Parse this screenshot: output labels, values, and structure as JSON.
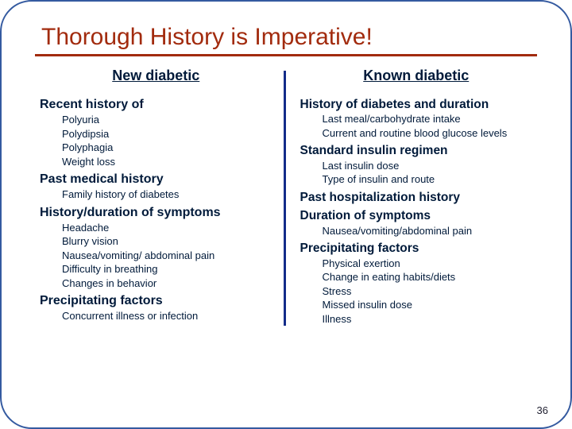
{
  "title": "Thorough History is Imperative!",
  "left": {
    "heading": "New diabetic",
    "sections": [
      {
        "title": "Recent history of",
        "items": [
          "Polyuria",
          "Polydipsia",
          "Polyphagia",
          "Weight loss"
        ]
      },
      {
        "title": "Past medical history",
        "items": [
          "Family history of diabetes"
        ]
      },
      {
        "title": "History/duration of symptoms",
        "items": [
          "Headache",
          "Blurry vision",
          "Nausea/vomiting/ abdominal pain",
          "Difficulty in breathing",
          "Changes in behavior"
        ]
      },
      {
        "title": "Precipitating factors",
        "items": [
          "Concurrent illness or infection"
        ]
      }
    ]
  },
  "right": {
    "heading": "Known diabetic",
    "sections": [
      {
        "title": "History of diabetes and duration",
        "items": [
          "Last meal/carbohydrate intake",
          "Current and routine blood glucose levels"
        ]
      },
      {
        "title": "Standard insulin regimen",
        "items": [
          "Last insulin dose",
          "Type of insulin and route"
        ]
      },
      {
        "title": "Past hospitalization history",
        "items": []
      },
      {
        "title": "Duration of symptoms",
        "items": [
          "Nausea/vomiting/abdominal pain"
        ]
      },
      {
        "title": "Precipitating factors",
        "items": [
          "Physical exertion",
          "Change in eating habits/diets",
          "Stress",
          "Missed insulin dose",
          "Illness"
        ]
      }
    ]
  },
  "page_number": "36",
  "colors": {
    "title": "#a22b0e",
    "border": "#345aa0",
    "divider": "#132c89",
    "text": "#001a3a"
  }
}
